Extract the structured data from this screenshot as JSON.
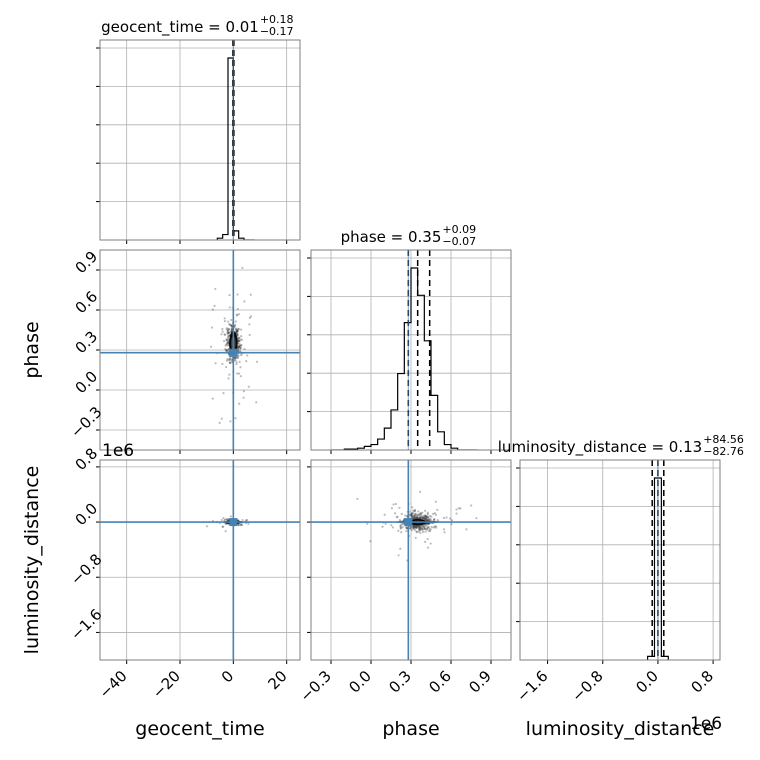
{
  "chart_data": {
    "type": "corner",
    "parameters": [
      "geocent_time",
      "phase",
      "luminosity_distance"
    ],
    "offset_text": {
      "luminosity_distance_y": "1e6",
      "luminosity_distance_x": "1e6"
    },
    "colors": {
      "hist": "#000000",
      "truth": "#4682b4",
      "grid": "#b0b0b0",
      "frame": "#7f7f7f",
      "points": "#404040"
    },
    "grid": true,
    "truths": {
      "geocent_time": 0.0,
      "phase": 0.28,
      "luminosity_distance": 0.0
    },
    "titles": [
      {
        "param": "geocent_time",
        "prefix": "geocent_time = ",
        "value": "0.01",
        "plus": "+0.18",
        "minus": "−0.17"
      },
      {
        "param": "phase",
        "prefix": "phase = ",
        "value": "0.35",
        "plus": "+0.09",
        "minus": "−0.07"
      },
      {
        "param": "luminosity_distance",
        "prefix": "luminosity_distance = ",
        "value": "0.13",
        "plus": "+84.56",
        "minus": "−82.76"
      }
    ],
    "axes": {
      "geocent_time": {
        "range": [
          -50,
          25
        ],
        "ticks": [
          -40,
          -20,
          0,
          20
        ],
        "tick_labels": [
          "−40",
          "−20",
          "0",
          "20"
        ]
      },
      "phase": {
        "range": [
          -0.45,
          1.05
        ],
        "ticks": [
          -0.3,
          0.0,
          0.3,
          0.6,
          0.9
        ],
        "tick_labels": [
          "−0.3",
          "0.0",
          "0.3",
          "0.6",
          "0.9"
        ]
      },
      "luminosity_distance": {
        "range": [
          -2.0,
          0.9
        ],
        "ticks": [
          -1.6,
          -0.8,
          0.0,
          0.8
        ],
        "tick_labels": [
          "−1.6",
          "−0.8",
          "0.0",
          "0.8"
        ]
      }
    },
    "histograms": {
      "geocent_time": {
        "bin_edges": [
          -6,
          -4,
          -2,
          0,
          2,
          4,
          8
        ],
        "counts": [
          0.01,
          0.03,
          1.0,
          0.05,
          0.01,
          0.0
        ],
        "quantile_lines": [
          -0.16,
          0.01,
          0.19
        ]
      },
      "phase": {
        "bin_edges": [
          -0.3,
          -0.2,
          -0.1,
          -0.05,
          0.0,
          0.05,
          0.1,
          0.15,
          0.2,
          0.25,
          0.3,
          0.35,
          0.4,
          0.45,
          0.5,
          0.55,
          0.6,
          0.65,
          0.7,
          0.8
        ],
        "counts": [
          0.0,
          0.005,
          0.01,
          0.02,
          0.03,
          0.06,
          0.12,
          0.22,
          0.42,
          0.7,
          1.0,
          0.85,
          0.6,
          0.3,
          0.1,
          0.03,
          0.01,
          0.0,
          0.0
        ],
        "quantile_lines": [
          0.28,
          0.35,
          0.44
        ]
      },
      "luminosity_distance": {
        "bin_edges": [
          -0.15,
          -0.05,
          0.05,
          0.15
        ],
        "counts": [
          0.02,
          1.0,
          0.02
        ],
        "quantile_lines": [
          -0.083,
          0.0,
          0.085
        ]
      }
    },
    "scatter_panels": [
      {
        "x": "geocent_time",
        "y": "phase",
        "center": [
          0.0,
          0.35
        ],
        "spread": [
          1.2,
          0.07
        ]
      },
      {
        "x": "geocent_time",
        "y": "luminosity_distance",
        "center": [
          0.0,
          0.0
        ],
        "spread": [
          1.0,
          0.01
        ]
      },
      {
        "x": "phase",
        "y": "luminosity_distance",
        "center": [
          0.35,
          0.0
        ],
        "spread": [
          0.05,
          0.01
        ]
      }
    ]
  }
}
